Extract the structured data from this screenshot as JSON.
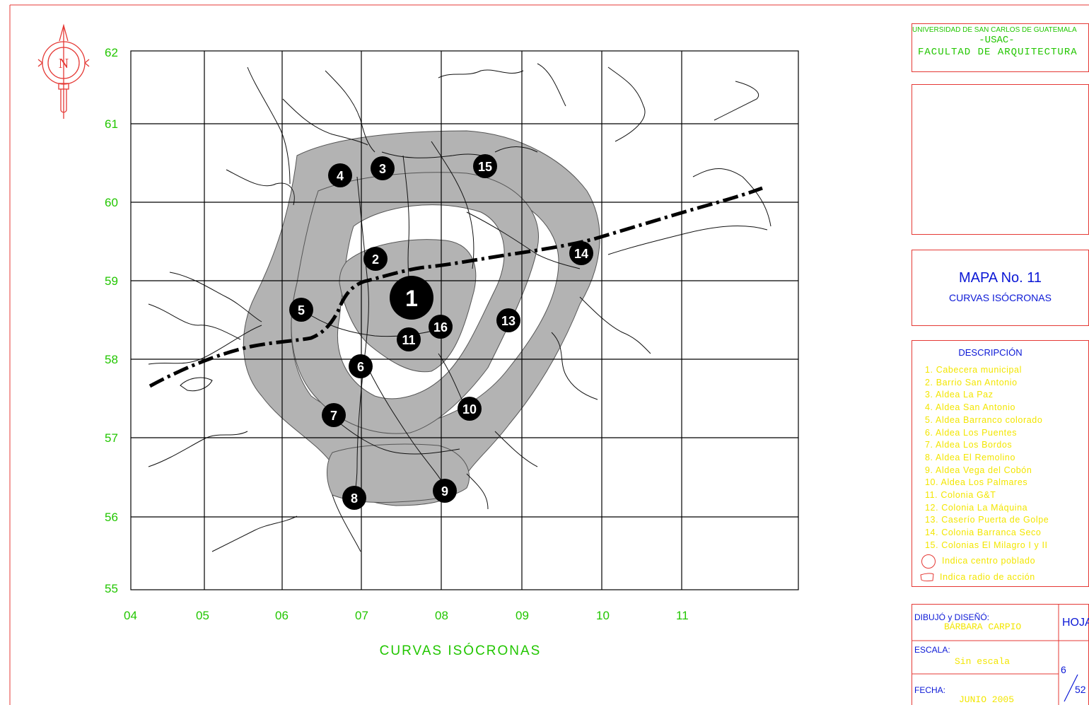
{
  "map": {
    "title": "CURVAS ISÓCRONAS",
    "y_ticks": [
      "62",
      "61",
      "60",
      "59",
      "58",
      "57",
      "56",
      "55"
    ],
    "x_ticks": [
      "04",
      "05",
      "06",
      "07",
      "08",
      "09",
      "10",
      "11"
    ],
    "north_label": "N",
    "markers": [
      {
        "n": "1"
      },
      {
        "n": "2"
      },
      {
        "n": "3"
      },
      {
        "n": "4"
      },
      {
        "n": "5"
      },
      {
        "n": "6"
      },
      {
        "n": "7"
      },
      {
        "n": "8"
      },
      {
        "n": "9"
      },
      {
        "n": "10"
      },
      {
        "n": "11"
      },
      {
        "n": "13"
      },
      {
        "n": "14"
      },
      {
        "n": "15"
      },
      {
        "n": "16"
      }
    ]
  },
  "header": {
    "university": "UNIVERSIDAD DE SAN CARLOS DE GUATEMALA",
    "acronym": "-USAC-",
    "faculty": "FACULTAD DE ARQUITECTURA"
  },
  "map_info": {
    "title": "MAPA No. 11",
    "subtitle": "CURVAS ISÓCRONAS"
  },
  "description": {
    "heading": "DESCRIPCIÓN",
    "items": [
      "1.   Cabecera municipal",
      "2.   Barrio San Antonio",
      "3.   Aldea La Paz",
      "4.   Aldea San Antonio",
      "5.   Aldea Barranco colorado",
      "6.   Aldea Los Puentes",
      "7.   Aldea Los Bordos",
      "8.   Aldea El Remolino",
      "9.   Aldea Vega del Cobón",
      "10. Aldea Los Palmares",
      "11. Colonia G&T",
      "12. Colonia La Máquina",
      "13. Caserío Puerta de Golpe",
      "14. Colonia Barranca Seco",
      "15. Colonias El Milagro  I y II"
    ],
    "legend_circle": "Indica centro poblado",
    "legend_area": "Indica radio de acción"
  },
  "credits": {
    "drawn_label": "DIBUJÓ y DISEÑÓ:",
    "drawn_value": "BÁRBARA CARPIO",
    "sheet_label": "HOJA",
    "scale_label": "ESCALA:",
    "scale_value": "Sin escala",
    "date_label": "FECHA:",
    "date_value": "JUNIO 2005",
    "sheet_number": "6",
    "sheet_total": "52"
  },
  "colors": {
    "grid_label": "#22c600",
    "frame": "#e53935",
    "blue_text": "#0b18d6",
    "legend_text": "#f3e600",
    "shade": "#b3b3b3"
  }
}
